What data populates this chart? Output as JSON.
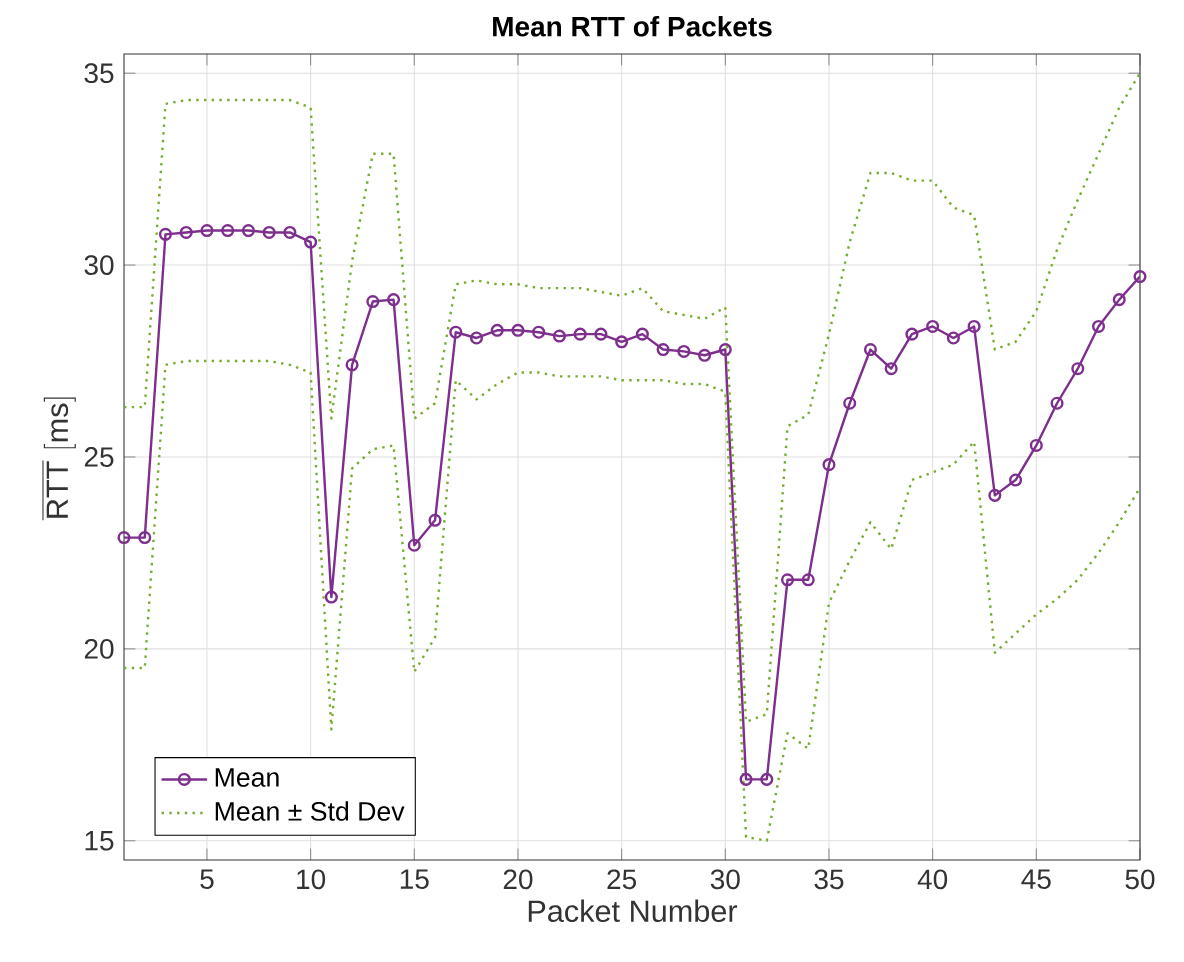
{
  "chart_data": {
    "type": "line",
    "title": "Mean RTT of Packets",
    "xlabel": "Packet Number",
    "ylabel": "\\overline{\\mathrm{RTT}}\\ [\\mathrm{ms}]",
    "x": [
      1,
      2,
      3,
      4,
      5,
      6,
      7,
      8,
      9,
      10,
      11,
      12,
      13,
      14,
      15,
      16,
      17,
      18,
      19,
      20,
      21,
      22,
      23,
      24,
      25,
      26,
      27,
      28,
      29,
      30,
      31,
      32,
      33,
      34,
      35,
      36,
      37,
      38,
      39,
      40,
      41,
      42,
      43,
      44,
      45,
      46,
      47,
      48,
      49,
      50
    ],
    "xlim": [
      1,
      50
    ],
    "xticks": [
      5,
      10,
      15,
      20,
      25,
      30,
      35,
      40,
      45,
      50
    ],
    "ylim": [
      14.5,
      35.5
    ],
    "yticks": [
      15,
      20,
      25,
      30,
      35
    ],
    "grid": true,
    "legend": "bottom left",
    "series": [
      {
        "name": "Mean",
        "color": "#7e2f8e",
        "marker": "circle",
        "line_style": "solid",
        "values": [
          22.9,
          22.9,
          30.8,
          30.85,
          30.9,
          30.9,
          30.9,
          30.85,
          30.85,
          30.6,
          21.35,
          27.4,
          29.05,
          29.1,
          22.7,
          23.35,
          28.25,
          28.1,
          28.3,
          28.3,
          28.25,
          28.15,
          28.2,
          28.2,
          28.0,
          28.2,
          27.8,
          27.75,
          27.65,
          27.8,
          16.6,
          16.6,
          21.8,
          21.8,
          24.8,
          26.4,
          27.8,
          27.3,
          28.2,
          28.4,
          28.1,
          28.4,
          24.0,
          24.4,
          25.3,
          26.4,
          27.3,
          28.4,
          29.1,
          29.7
        ]
      },
      {
        "name": "Mean ± Std Dev",
        "color": "#77ac30",
        "marker": "none",
        "line_style": "dotted",
        "values": [
          26.3,
          26.3,
          34.2,
          34.3,
          34.3,
          34.3,
          34.3,
          34.3,
          34.3,
          34.1,
          26.0,
          30.1,
          32.9,
          32.9,
          26.0,
          26.4,
          29.5,
          29.6,
          29.5,
          29.5,
          29.4,
          29.4,
          29.4,
          29.3,
          29.2,
          29.4,
          28.8,
          28.7,
          28.6,
          28.9,
          18.1,
          18.3,
          25.8,
          26.1,
          28.2,
          30.6,
          32.4,
          32.4,
          32.2,
          32.2,
          31.5,
          31.3,
          27.8,
          28.0,
          28.8,
          30.4,
          31.7,
          32.9,
          34.1,
          35.0
        ]
      },
      {
        "color": "#77ac30",
        "marker": "none",
        "line_style": "dotted",
        "values": [
          19.5,
          19.5,
          27.4,
          27.5,
          27.5,
          27.5,
          27.5,
          27.5,
          27.4,
          27.2,
          17.9,
          24.7,
          25.2,
          25.3,
          19.4,
          20.3,
          27.0,
          26.5,
          26.9,
          27.2,
          27.2,
          27.1,
          27.1,
          27.1,
          27.0,
          27.0,
          27.0,
          26.9,
          26.9,
          26.7,
          15.1,
          15.0,
          17.8,
          17.4,
          21.2,
          22.3,
          23.3,
          22.6,
          24.4,
          24.6,
          24.8,
          25.4,
          19.9,
          20.4,
          20.9,
          21.3,
          21.8,
          22.5,
          23.3,
          24.2
        ]
      }
    ]
  }
}
